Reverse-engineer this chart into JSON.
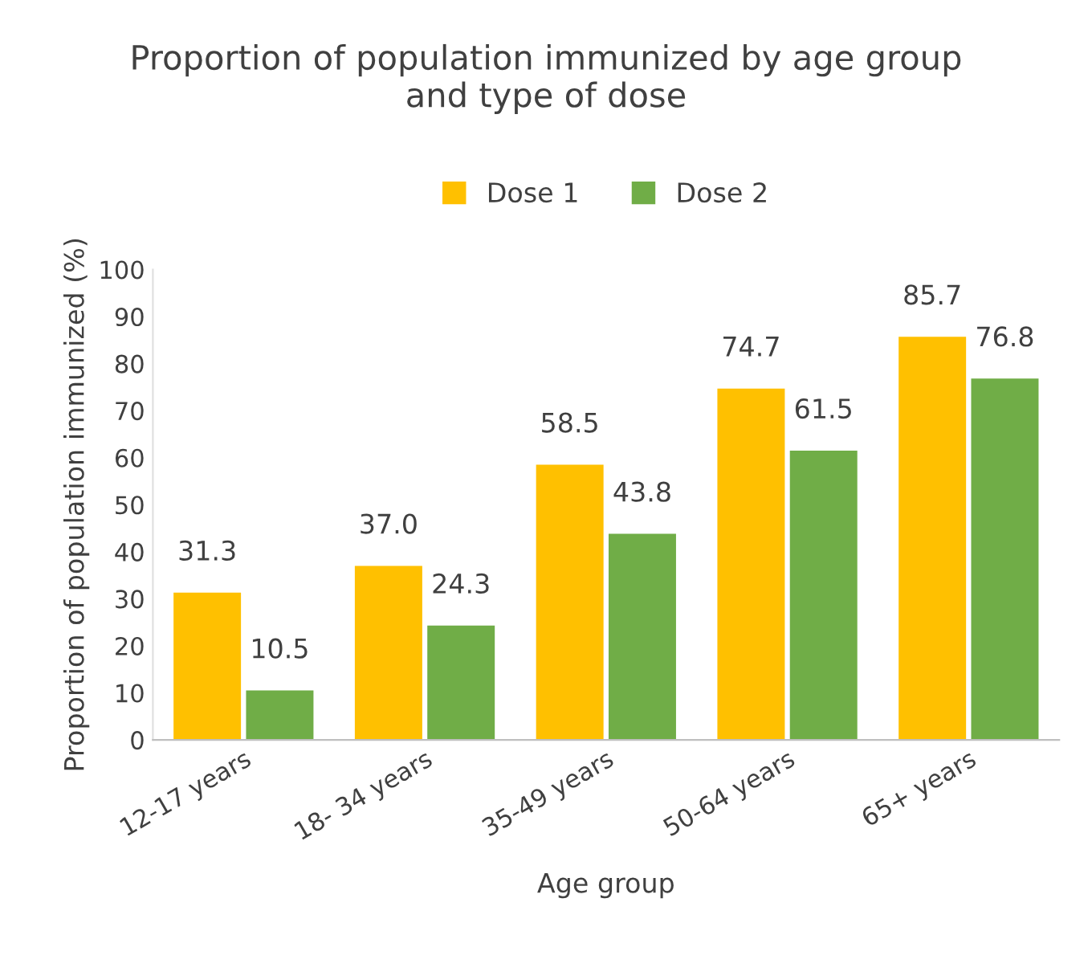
{
  "chart_data": {
    "type": "bar",
    "title": "Proportion of population immunized by age group\nand type of dose",
    "xlabel": "Age group",
    "ylabel": "Proportion of population immunized (%)",
    "categories": [
      "12-17 years",
      "18- 34 years",
      "35-49 years",
      "50-64 years",
      "65+ years"
    ],
    "series": [
      {
        "name": "Dose 1",
        "color": "#ffc000",
        "values": [
          31.3,
          37.0,
          58.5,
          74.7,
          85.7
        ],
        "value_labels": [
          "31.3",
          "37.0",
          "58.5",
          "74.7",
          "85.7"
        ]
      },
      {
        "name": "Dose 2",
        "color": "#70ad47",
        "values": [
          10.5,
          24.3,
          43.8,
          61.5,
          76.8
        ],
        "value_labels": [
          "10.5",
          "24.3",
          "43.8",
          "61.5",
          "76.8"
        ]
      }
    ],
    "ylim": [
      0,
      100
    ],
    "yticks": [
      0,
      10,
      20,
      30,
      40,
      50,
      60,
      70,
      80,
      90,
      100
    ],
    "legend": "top",
    "grid": false
  }
}
